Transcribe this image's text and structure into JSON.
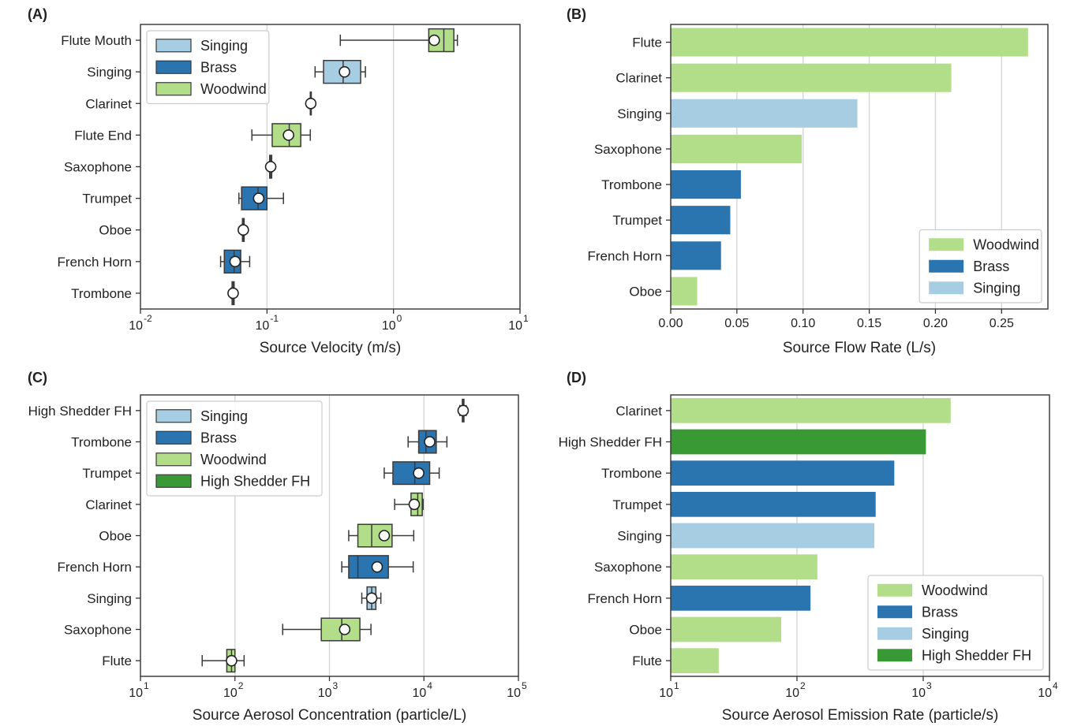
{
  "colors": {
    "singing": "#a6cde2",
    "brass": "#2a74b0",
    "woodwind": "#b2de8a",
    "high_shedder": "#399a35",
    "grid": "#d6d6d6",
    "axis": "#333333"
  },
  "chart_data": [
    {
      "panel": "(A)",
      "type": "box",
      "xscale": "log",
      "xlim": [
        0.01,
        10
      ],
      "xticks": [
        0.01,
        0.1,
        1,
        10
      ],
      "xtick_labels": [
        [
          "10",
          "-2"
        ],
        [
          "10",
          "-1"
        ],
        [
          "10",
          "0"
        ],
        [
          "10",
          "1"
        ]
      ],
      "xlabel": "Source Velocity (m/s)",
      "grid": "x",
      "legend": {
        "placement": "upper-left",
        "entries": [
          {
            "label": "Singing",
            "group": "singing"
          },
          {
            "label": "Brass",
            "group": "brass"
          },
          {
            "label": "Woodwind",
            "group": "woodwind"
          }
        ]
      },
      "categories": [
        "Flute Mouth",
        "Singing",
        "Clarinet",
        "Flute End",
        "Saxophone",
        "Trumpet",
        "Oboe",
        "French Horn",
        "Trombone"
      ],
      "boxes": [
        {
          "group": "woodwind",
          "whislo": 0.38,
          "q1": 1.9,
          "med": 2.5,
          "q3": 3.0,
          "whishi": 3.2,
          "mean": 2.1
        },
        {
          "group": "singing",
          "whislo": 0.24,
          "q1": 0.28,
          "med": 0.4,
          "q3": 0.55,
          "whishi": 0.6,
          "mean": 0.41
        },
        {
          "group": "woodwind",
          "whislo": 0.215,
          "q1": 0.22,
          "med": 0.222,
          "q3": 0.224,
          "whishi": 0.225,
          "mean": 0.222
        },
        {
          "group": "woodwind",
          "whislo": 0.076,
          "q1": 0.11,
          "med": 0.15,
          "q3": 0.185,
          "whishi": 0.22,
          "mean": 0.148
        },
        {
          "group": "woodwind",
          "whislo": 0.104,
          "q1": 0.105,
          "med": 0.107,
          "q3": 0.109,
          "whishi": 0.11,
          "mean": 0.107
        },
        {
          "group": "brass",
          "whislo": 0.06,
          "q1": 0.063,
          "med": 0.085,
          "q3": 0.1,
          "whishi": 0.135,
          "mean": 0.086
        },
        {
          "group": "woodwind",
          "whislo": 0.063,
          "q1": 0.064,
          "med": 0.065,
          "q3": 0.066,
          "whishi": 0.066,
          "mean": 0.065
        },
        {
          "group": "brass",
          "whislo": 0.043,
          "q1": 0.046,
          "med": 0.055,
          "q3": 0.062,
          "whishi": 0.073,
          "mean": 0.056
        },
        {
          "group": "woodwind",
          "whislo": 0.052,
          "q1": 0.053,
          "med": 0.054,
          "q3": 0.055,
          "whishi": 0.055,
          "mean": 0.054
        }
      ]
    },
    {
      "panel": "(B)",
      "type": "bar",
      "orientation": "horizontal",
      "xscale": "linear",
      "xlim": [
        0,
        0.285
      ],
      "xticks": [
        0,
        0.05,
        0.1,
        0.15,
        0.2,
        0.25
      ],
      "xtick_labels": [
        [
          "0.00"
        ],
        [
          "0.05"
        ],
        [
          "0.10"
        ],
        [
          "0.15"
        ],
        [
          "0.20"
        ],
        [
          "0.25"
        ]
      ],
      "xlabel": "Source Flow Rate (L/s)",
      "grid": "x",
      "legend": {
        "placement": "lower-right",
        "entries": [
          {
            "label": "Woodwind",
            "group": "woodwind"
          },
          {
            "label": "Brass",
            "group": "brass"
          },
          {
            "label": "Singing",
            "group": "singing"
          }
        ]
      },
      "categories": [
        "Flute",
        "Clarinet",
        "Singing",
        "Saxophone",
        "Trombone",
        "Trumpet",
        "French Horn",
        "Oboe"
      ],
      "values": [
        0.27,
        0.212,
        0.141,
        0.099,
        0.053,
        0.045,
        0.038,
        0.02
      ],
      "groups": [
        "woodwind",
        "woodwind",
        "singing",
        "woodwind",
        "brass",
        "brass",
        "brass",
        "woodwind"
      ]
    },
    {
      "panel": "(C)",
      "type": "box",
      "xscale": "log",
      "xlim": [
        10,
        100000
      ],
      "xticks": [
        10,
        100,
        1000,
        10000,
        100000
      ],
      "xtick_labels": [
        [
          "10",
          "1"
        ],
        [
          "10",
          "2"
        ],
        [
          "10",
          "3"
        ],
        [
          "10",
          "4"
        ],
        [
          "10",
          "5"
        ]
      ],
      "xlabel": "Source Aerosol Concentration (particle/L)",
      "grid": "x",
      "legend": {
        "placement": "upper-left",
        "entries": [
          {
            "label": "Singing",
            "group": "singing"
          },
          {
            "label": "Brass",
            "group": "brass"
          },
          {
            "label": "Woodwind",
            "group": "woodwind"
          },
          {
            "label": "High Shedder FH",
            "group": "high_shedder"
          }
        ]
      },
      "categories": [
        "High Shedder FH",
        "Trombone",
        "Trumpet",
        "Clarinet",
        "Oboe",
        "French Horn",
        "Singing",
        "Saxophone",
        "Flute"
      ],
      "boxes": [
        {
          "group": "high_shedder",
          "whislo": 24000,
          "q1": 25500,
          "med": 26000,
          "q3": 26500,
          "whishi": 28000,
          "mean": 26000
        },
        {
          "group": "brass",
          "whislo": 6800,
          "q1": 8800,
          "med": 10500,
          "q3": 13500,
          "whishi": 17500,
          "mean": 11500
        },
        {
          "group": "brass",
          "whislo": 3800,
          "q1": 4700,
          "med": 8000,
          "q3": 11500,
          "whishi": 14500,
          "mean": 8800
        },
        {
          "group": "woodwind",
          "whislo": 4900,
          "q1": 7300,
          "med": 8600,
          "q3": 9600,
          "whishi": 9800,
          "mean": 7900
        },
        {
          "group": "woodwind",
          "whislo": 1600,
          "q1": 2000,
          "med": 2800,
          "q3": 4600,
          "whishi": 7800,
          "mean": 3800
        },
        {
          "group": "brass",
          "whislo": 1350,
          "q1": 1600,
          "med": 2000,
          "q3": 4200,
          "whishi": 7700,
          "mean": 3200
        },
        {
          "group": "singing",
          "whislo": 2200,
          "q1": 2500,
          "med": 2800,
          "q3": 3100,
          "whishi": 3500,
          "mean": 2800
        },
        {
          "group": "woodwind",
          "whislo": 320,
          "q1": 820,
          "med": 1350,
          "q3": 2100,
          "whishi": 2750,
          "mean": 1450
        },
        {
          "group": "woodwind",
          "whislo": 45,
          "q1": 82,
          "med": 92,
          "q3": 100,
          "whishi": 125,
          "mean": 92
        }
      ]
    },
    {
      "panel": "(D)",
      "type": "bar",
      "orientation": "horizontal",
      "xscale": "log",
      "xlim": [
        10,
        10000
      ],
      "xticks": [
        10,
        100,
        1000,
        10000
      ],
      "xtick_labels": [
        [
          "10",
          "1"
        ],
        [
          "10",
          "2"
        ],
        [
          "10",
          "3"
        ],
        [
          "10",
          "4"
        ]
      ],
      "xlabel": "Source Aerosol Emission Rate (particle/s)",
      "grid": "x",
      "legend": {
        "placement": "lower-right",
        "entries": [
          {
            "label": "Woodwind",
            "group": "woodwind"
          },
          {
            "label": "Brass",
            "group": "brass"
          },
          {
            "label": "Singing",
            "group": "singing"
          },
          {
            "label": "High Shedder FH",
            "group": "high_shedder"
          }
        ]
      },
      "categories": [
        "Clarinet",
        "High Shedder FH",
        "Trombone",
        "Trumpet",
        "Singing",
        "Saxophone",
        "French Horn",
        "Oboe",
        "Flute"
      ],
      "values": [
        1650,
        1050,
        590,
        420,
        410,
        145,
        128,
        75,
        24
      ],
      "groups": [
        "woodwind",
        "high_shedder",
        "brass",
        "brass",
        "singing",
        "woodwind",
        "brass",
        "woodwind",
        "woodwind"
      ]
    }
  ]
}
